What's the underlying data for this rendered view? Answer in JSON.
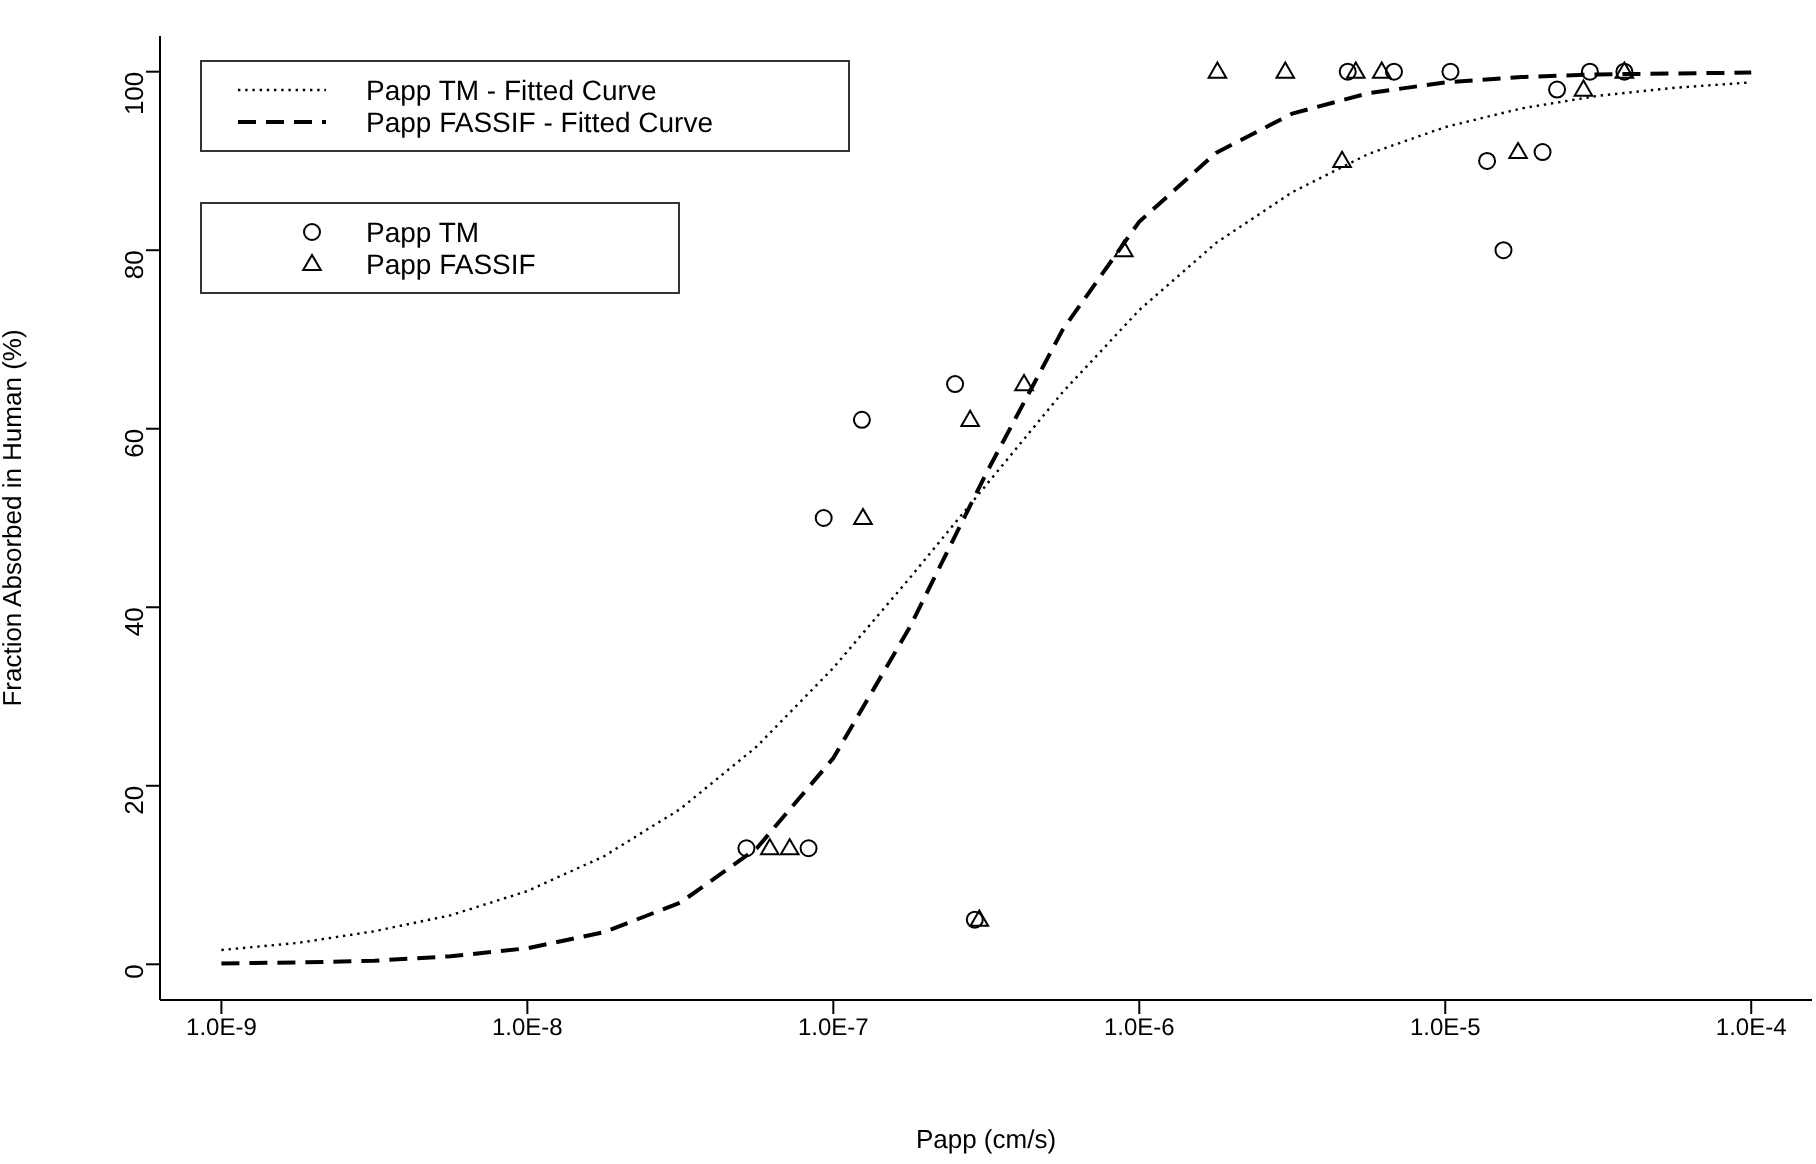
{
  "chart_data": {
    "type": "scatter",
    "xlabel": "Papp (cm/s)",
    "ylabel": "Fraction Absorbed in Human (%)",
    "log": "x",
    "xlim": [
      6.3e-10,
      0.000158
    ],
    "xticks": [
      {
        "value": 1e-09,
        "label": "1.0E-9"
      },
      {
        "value": 1e-08,
        "label": "1.0E-8"
      },
      {
        "value": 1e-07,
        "label": "1.0E-7"
      },
      {
        "value": 1e-06,
        "label": "1.0E-6"
      },
      {
        "value": 1e-05,
        "label": "1.0E-5"
      },
      {
        "value": 0.0001,
        "label": "1.0E-4"
      }
    ],
    "ylim": [
      -4,
      104
    ],
    "yticks": [
      0,
      20,
      40,
      60,
      80,
      100
    ],
    "grid": false,
    "legend": "top left",
    "series": [
      {
        "name": "Papp TM - Fitted Curve",
        "type": "line",
        "line_style": "dotted",
        "marker": "none",
        "color": "#000000",
        "x": [
          1e-09,
          1.78e-09,
          3.16e-09,
          5.62e-09,
          1e-08,
          1.78e-08,
          3.16e-08,
          5.62e-08,
          1e-07,
          1.78e-07,
          3.16e-07,
          5.62e-07,
          1e-06,
          1.78e-06,
          3.16e-06,
          5.62e-06,
          1e-05,
          1.78e-05,
          3.16e-05,
          5.62e-05,
          0.0001
        ],
        "values": [
          1.6,
          2.4,
          3.7,
          5.5,
          8.2,
          12.1,
          17.4,
          24.4,
          33.2,
          43.3,
          53.7,
          64.1,
          73.3,
          80.8,
          86.5,
          90.8,
          93.8,
          95.9,
          97.3,
          98.2,
          98.8
        ]
      },
      {
        "name": "Papp FASSIF - Fitted Curve",
        "type": "line",
        "line_style": "dashed",
        "marker": "none",
        "color": "#000000",
        "x": [
          1e-09,
          1.78e-09,
          3.16e-09,
          5.62e-09,
          1e-08,
          1.78e-08,
          3.16e-08,
          5.62e-08,
          1e-07,
          1.78e-07,
          3.16e-07,
          5.62e-07,
          1e-06,
          1.78e-06,
          3.16e-06,
          5.62e-06,
          1e-05,
          1.78e-05,
          3.16e-05,
          5.62e-05,
          0.0001
        ],
        "values": [
          0.1,
          0.2,
          0.4,
          0.9,
          1.8,
          3.6,
          6.9,
          13.0,
          23.1,
          37.8,
          55.0,
          71.1,
          83.2,
          90.9,
          95.3,
          97.6,
          98.8,
          99.4,
          99.7,
          99.8,
          99.9
        ]
      },
      {
        "name": "Papp TM",
        "marker": "circle",
        "color": "#000000",
        "x": [
          5.2e-08,
          8.3e-08,
          9.3e-08,
          1.24e-07,
          2.5e-07,
          2.9e-07,
          4.8e-06,
          6.8e-06,
          1.04e-05,
          1.37e-05,
          1.55e-05,
          2.08e-05,
          2.32e-05,
          2.97e-05,
          3.85e-05
        ],
        "values": [
          13,
          13,
          50,
          61,
          65,
          5,
          100,
          100,
          100,
          90,
          80,
          91,
          98,
          100,
          100
        ]
      },
      {
        "name": "Papp FASSIF",
        "marker": "triangle",
        "color": "#000000",
        "x": [
          6.2e-08,
          7.2e-08,
          1.25e-07,
          2.8e-07,
          3e-07,
          4.2e-07,
          8.9e-07,
          1.8e-06,
          3e-06,
          4.6e-06,
          5.1e-06,
          6.2e-06,
          1.73e-05,
          2.83e-05,
          3.85e-05
        ],
        "values": [
          13,
          13,
          50,
          61,
          5,
          65,
          80,
          100,
          100,
          90,
          100,
          100,
          91,
          98,
          100
        ]
      }
    ]
  }
}
